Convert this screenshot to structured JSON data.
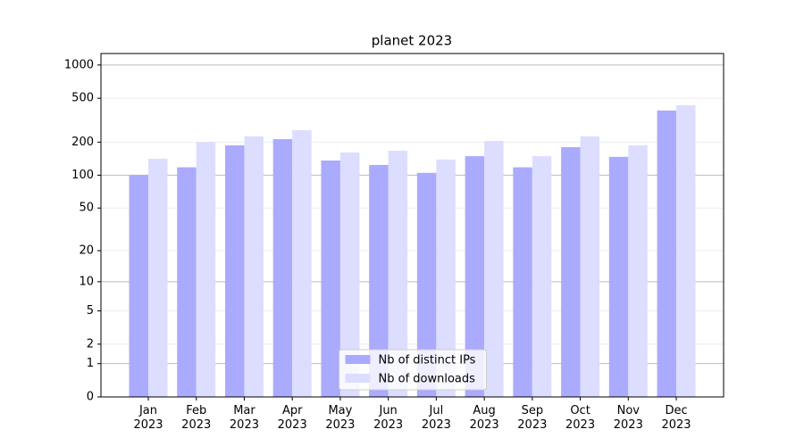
{
  "chart_data": {
    "type": "bar",
    "title": "planet 2023",
    "categories": [
      "Jan\n2023",
      "Feb\n2023",
      "Mar\n2023",
      "Apr\n2023",
      "May\n2023",
      "Jun\n2023",
      "Jul\n2023",
      "Aug\n2023",
      "Sep\n2023",
      "Oct\n2023",
      "Nov\n2023",
      "Dec\n2023"
    ],
    "series": [
      {
        "name": "Nb of distinct IPs",
        "color": "#aaaaff",
        "values": [
          100,
          118,
          187,
          213,
          136,
          124,
          105,
          149,
          118,
          180,
          147,
          387
        ]
      },
      {
        "name": "Nb of downloads",
        "color": "#ddddff",
        "values": [
          141,
          200,
          226,
          257,
          161,
          167,
          139,
          205,
          149,
          226,
          187,
          432
        ]
      }
    ],
    "yscale": "log1p",
    "ylim": [
      0,
      1270
    ],
    "yticks": [
      0,
      1,
      2,
      5,
      10,
      20,
      50,
      100,
      200,
      500,
      1000
    ],
    "grid": true,
    "legend": "lower center"
  }
}
